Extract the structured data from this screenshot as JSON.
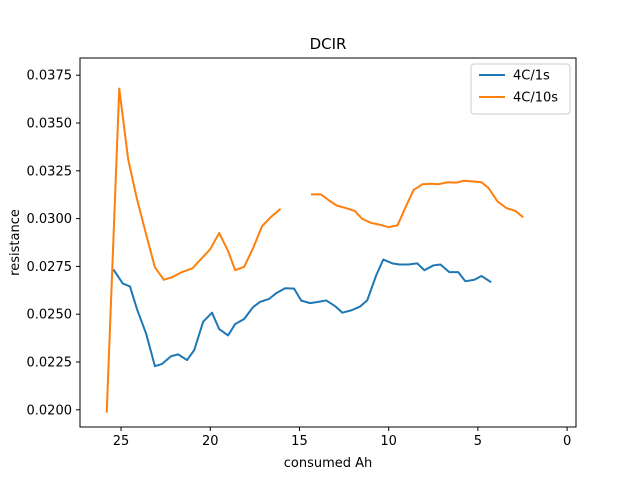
{
  "chart_data": {
    "type": "line",
    "title": "DCIR",
    "xlabel": "consumed Ah",
    "ylabel": "resistance",
    "xlim": [
      27.3,
      -0.5
    ],
    "ylim": [
      0.0191,
      0.0384
    ],
    "x_inverted": true,
    "xticks": [
      25,
      20,
      15,
      10,
      5,
      0
    ],
    "xtick_labels": [
      "25",
      "20",
      "15",
      "10",
      "5",
      "0"
    ],
    "yticks": [
      0.02,
      0.0225,
      0.025,
      0.0275,
      0.03,
      0.0325,
      0.035,
      0.0375
    ],
    "ytick_labels": [
      "0.0200",
      "0.0225",
      "0.0250",
      "0.0275",
      "0.0300",
      "0.0325",
      "0.0350",
      "0.0375"
    ],
    "legend_position": "top-right",
    "grid": false,
    "series": [
      {
        "name": "4C/1s",
        "color": "#1f77b4",
        "points": [
          [
            25.4,
            0.0273
          ],
          [
            24.9,
            0.0266
          ],
          [
            24.5,
            0.02645
          ],
          [
            24.1,
            0.02525
          ],
          [
            23.6,
            0.024
          ],
          [
            23.1,
            0.02228
          ],
          [
            22.7,
            0.0224
          ],
          [
            22.2,
            0.0228
          ],
          [
            21.8,
            0.0229
          ],
          [
            21.3,
            0.0226
          ],
          [
            20.9,
            0.02312
          ],
          [
            20.4,
            0.0246
          ],
          [
            19.9,
            0.02508
          ],
          [
            19.5,
            0.02422
          ],
          [
            19.0,
            0.02389
          ],
          [
            18.6,
            0.02449
          ],
          [
            18.1,
            0.02475
          ],
          [
            17.6,
            0.02537
          ],
          [
            17.2,
            0.02565
          ],
          [
            16.7,
            0.0258
          ],
          [
            16.3,
            0.0261
          ],
          [
            15.8,
            0.02636
          ],
          [
            15.3,
            0.02634
          ],
          [
            14.9,
            0.02571
          ],
          [
            14.4,
            0.02558
          ],
          [
            13.9,
            0.02565
          ],
          [
            13.5,
            0.02572
          ],
          [
            13.0,
            0.02542
          ],
          [
            12.6,
            0.02508
          ],
          [
            12.1,
            0.0252
          ],
          [
            11.6,
            0.0254
          ],
          [
            11.2,
            0.02573
          ],
          [
            10.7,
            0.02703
          ],
          [
            10.3,
            0.02786
          ],
          [
            9.8,
            0.02766
          ],
          [
            9.4,
            0.0276
          ],
          [
            8.9,
            0.0276
          ],
          [
            8.4,
            0.02766
          ],
          [
            8.0,
            0.0273
          ],
          [
            7.5,
            0.02755
          ],
          [
            7.1,
            0.0276
          ],
          [
            6.6,
            0.0272
          ],
          [
            6.1,
            0.0272
          ],
          [
            5.7,
            0.02672
          ],
          [
            5.2,
            0.0268
          ],
          [
            4.8,
            0.027
          ],
          [
            4.3,
            0.0267
          ]
        ]
      },
      {
        "name": "4C/10s",
        "color": "#ff7f0e",
        "segments": [
          [
            [
              25.8,
              0.0199
            ],
            [
              25.1,
              0.0368
            ],
            [
              24.6,
              0.0331
            ],
            [
              24.1,
              0.031
            ],
            [
              23.6,
              0.0292
            ],
            [
              23.1,
              0.02745
            ],
            [
              22.6,
              0.0268
            ],
            [
              22.1,
              0.02695
            ],
            [
              21.6,
              0.0272
            ],
            [
              21.0,
              0.0274
            ],
            [
              20.5,
              0.0279
            ],
            [
              20.0,
              0.0284
            ],
            [
              19.5,
              0.02925
            ],
            [
              19.0,
              0.0283
            ],
            [
              18.6,
              0.0273
            ],
            [
              18.1,
              0.02748
            ],
            [
              17.6,
              0.02845
            ],
            [
              17.1,
              0.0296
            ],
            [
              16.6,
              0.03008
            ],
            [
              16.1,
              0.03048
            ]
          ],
          [
            [
              14.3,
              0.03127
            ],
            [
              13.8,
              0.03127
            ],
            [
              13.3,
              0.03092
            ],
            [
              12.9,
              0.03068
            ],
            [
              12.4,
              0.03055
            ],
            [
              11.9,
              0.0304
            ],
            [
              11.5,
              0.03
            ],
            [
              11.0,
              0.02978
            ],
            [
              10.5,
              0.02968
            ],
            [
              10.0,
              0.02955
            ],
            [
              9.5,
              0.02965
            ],
            [
              9.1,
              0.0305
            ],
            [
              8.6,
              0.0315
            ],
            [
              8.1,
              0.0318
            ],
            [
              7.6,
              0.03182
            ],
            [
              7.2,
              0.0318
            ],
            [
              6.7,
              0.0319
            ],
            [
              6.2,
              0.03188
            ],
            [
              5.8,
              0.03198
            ],
            [
              5.3,
              0.03195
            ],
            [
              4.8,
              0.0319
            ],
            [
              4.4,
              0.0316
            ],
            [
              3.9,
              0.0309
            ],
            [
              3.4,
              0.03055
            ],
            [
              2.9,
              0.0304
            ],
            [
              2.5,
              0.0301
            ]
          ]
        ]
      }
    ]
  }
}
